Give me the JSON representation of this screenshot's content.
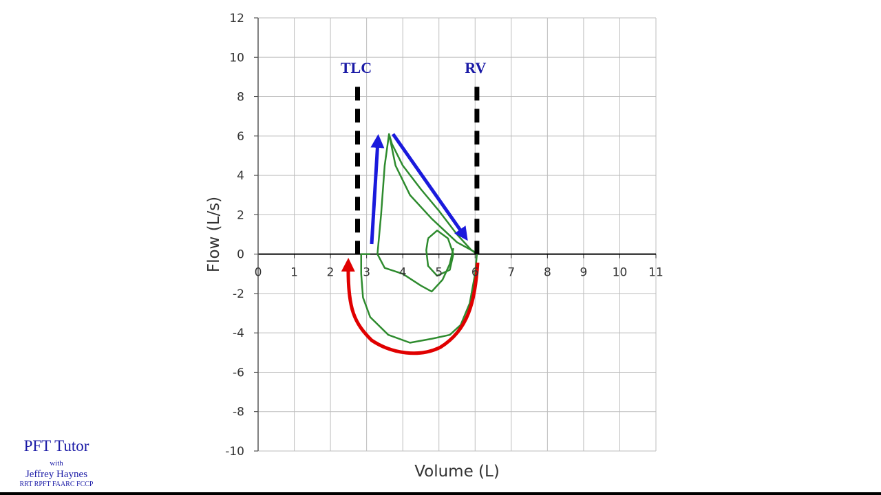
{
  "chart_data": {
    "type": "line",
    "x_label": "Volume (L)",
    "y_label": "Flow (L/s)",
    "xlim": [
      0,
      11
    ],
    "ylim": [
      -10,
      12
    ],
    "xticks": [
      0,
      1,
      2,
      3,
      4,
      5,
      6,
      7,
      8,
      9,
      10,
      11
    ],
    "yticks": [
      -10,
      -8,
      -6,
      -4,
      -2,
      0,
      2,
      4,
      6,
      8,
      10,
      12
    ],
    "grid": true,
    "series": [
      {
        "color": "#2e8b2e",
        "x": [
          3.3,
          3.4,
          3.5,
          3.62,
          3.7,
          4.0,
          4.5,
          5.0,
          5.5,
          5.9,
          6.05,
          6.0,
          5.85,
          5.6,
          5.3,
          4.8,
          4.2,
          3.6,
          3.1,
          2.9,
          2.85,
          2.85,
          3.1
        ],
        "values": [
          0,
          2,
          4.5,
          6.1,
          5.6,
          4.5,
          3.3,
          2.2,
          1.0,
          0.2,
          0,
          -1,
          -2.5,
          -3.6,
          -4.1,
          -4.3,
          -4.5,
          -4.1,
          -3.2,
          -2.2,
          -1,
          0,
          0
        ]
      },
      {
        "color": "#2e8b2e",
        "x": [
          3.62,
          3.8,
          4.2,
          4.8,
          5.5,
          6.0
        ],
        "values": [
          6.1,
          4.5,
          3.0,
          1.8,
          0.6,
          0.1
        ]
      },
      {
        "color": "#2e8b2e",
        "x": [
          3.3,
          3.5,
          4.0,
          4.5,
          4.8,
          5.1,
          5.3,
          5.4
        ],
        "values": [
          0,
          -0.7,
          -1.0,
          -1.6,
          -1.9,
          -1.3,
          -0.5,
          0.3
        ]
      },
      {
        "color": "#2e8b2e",
        "x": [
          4.7,
          4.95,
          5.25,
          5.4,
          5.3,
          4.95,
          4.7,
          4.65,
          4.7
        ],
        "values": [
          0.8,
          1.2,
          0.8,
          0,
          -0.8,
          -1.1,
          -0.6,
          0.2,
          0.8
        ]
      }
    ],
    "annotations": [
      {
        "label": "TLC",
        "x": 2.75,
        "color": "#1a1aa6"
      },
      {
        "label": "RV",
        "x": 6.05,
        "color": "#1a1aa6"
      }
    ]
  },
  "branding": {
    "title": "PFT Tutor",
    "with": "with",
    "name": "Jeffrey Haynes",
    "credentials": "RRT RPFT FAARC FCCP"
  }
}
